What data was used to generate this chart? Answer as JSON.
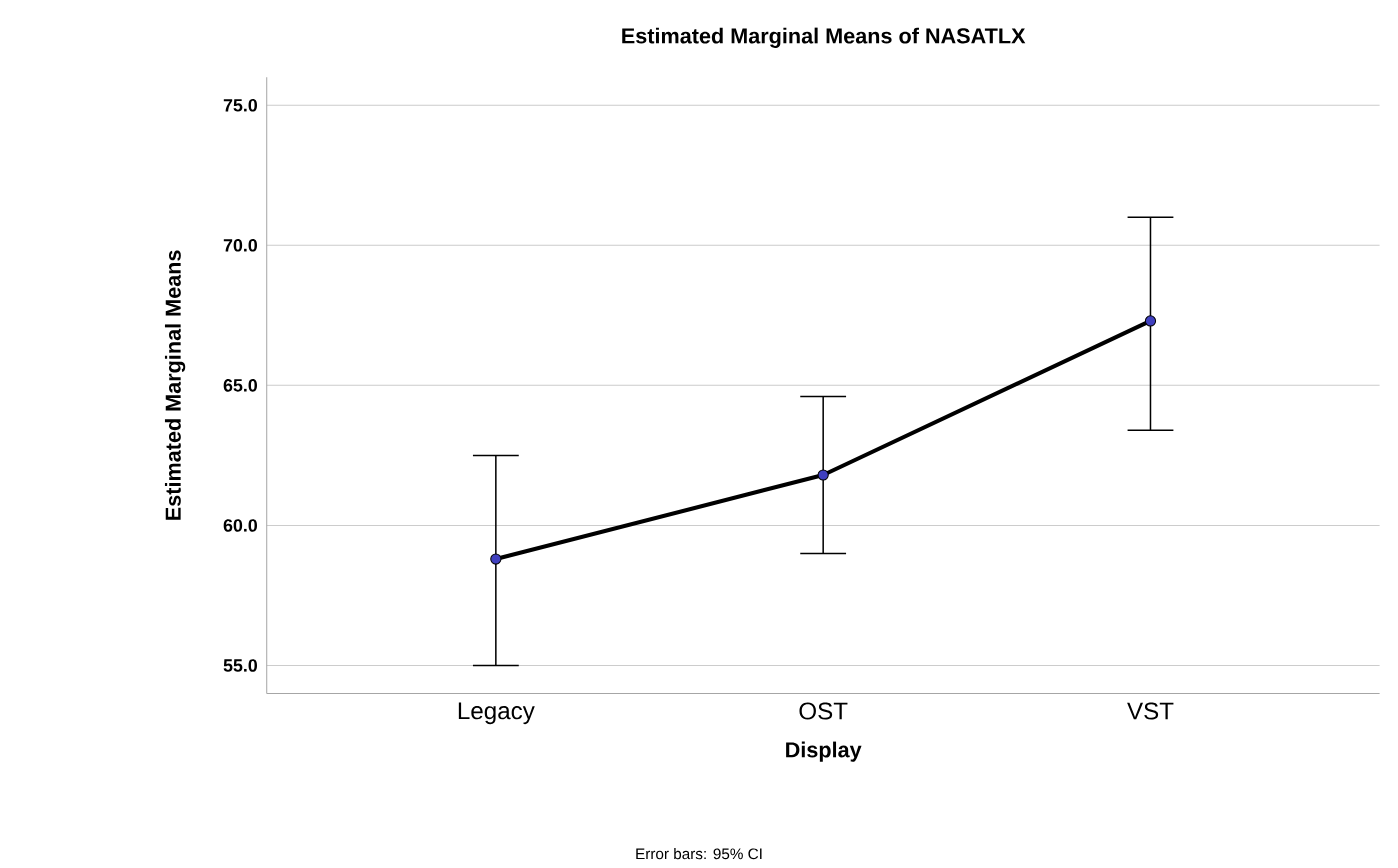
{
  "chart_data": {
    "type": "line",
    "title": "Estimated Marginal Means of NASATLX",
    "xlabel": "Display",
    "ylabel": "Estimated Marginal Means",
    "categories": [
      "Legacy",
      "OST",
      "VST"
    ],
    "values": [
      58.8,
      61.8,
      67.3
    ],
    "errors": [
      [
        55.0,
        62.5
      ],
      [
        59.0,
        64.6
      ],
      [
        63.4,
        71.0
      ]
    ],
    "color": "#000000",
    "marker": "circle",
    "line_style": "solid",
    "grid": "y",
    "ylim": [
      54,
      76
    ],
    "yticks": [
      {
        "value": 55,
        "label": "55.0"
      },
      {
        "value": 60,
        "label": "60.0"
      },
      {
        "value": 65,
        "label": "65.0"
      },
      {
        "value": 70,
        "label": "70.0"
      },
      {
        "value": 75,
        "label": "75.0"
      }
    ],
    "annotations": [
      "Error bars: 95% CI"
    ]
  }
}
